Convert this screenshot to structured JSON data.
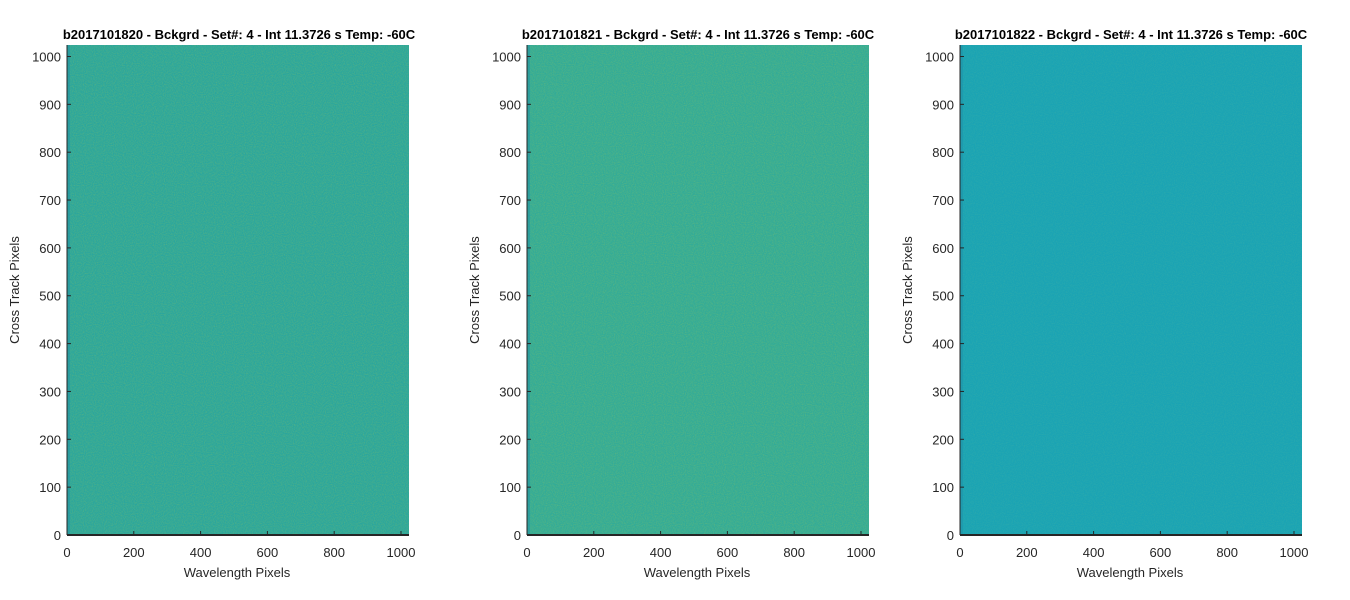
{
  "chart_data": [
    {
      "type": "heatmap",
      "title": "b2017101820 - Bckgrd - Set#: 4 - Int 11.3726 s Temp: -60C",
      "xlabel": "Wavelength Pixels",
      "ylabel": "Cross Track Pixels",
      "xlim": [
        0,
        1024
      ],
      "ylim": [
        0,
        1024
      ],
      "xticks": [
        0,
        200,
        400,
        600,
        800,
        1000
      ],
      "yticks": [
        0,
        100,
        200,
        300,
        400,
        500,
        600,
        700,
        800,
        900,
        1000
      ],
      "colormap": "parula",
      "dominant_color": "#2ba69d",
      "speckle_color": "#7fbf68",
      "description_level": "uniform background noise"
    },
    {
      "type": "heatmap",
      "title": "b2017101821 - Bckgrd - Set#: 4 - Int 11.3726 s Temp: -60C",
      "xlabel": "Wavelength Pixels",
      "ylabel": "Cross Track Pixels",
      "xlim": [
        0,
        1024
      ],
      "ylim": [
        0,
        1024
      ],
      "xticks": [
        0,
        200,
        400,
        600,
        800,
        1000
      ],
      "yticks": [
        0,
        100,
        200,
        300,
        400,
        500,
        600,
        700,
        800,
        900,
        1000
      ],
      "colormap": "parula",
      "dominant_color": "#32ab98",
      "speckle_color": "#86c265",
      "description_level": "uniform background noise"
    },
    {
      "type": "heatmap",
      "title": "b2017101822 - Bckgrd - Set#: 4 - Int 11.3726 s Temp: -60C",
      "xlabel": "Wavelength Pixels",
      "ylabel": "Cross Track Pixels",
      "xlim": [
        0,
        1024
      ],
      "ylim": [
        0,
        1024
      ],
      "xticks": [
        0,
        200,
        400,
        600,
        800,
        1000
      ],
      "yticks": [
        0,
        100,
        200,
        300,
        400,
        500,
        600,
        700,
        800,
        900,
        1000
      ],
      "colormap": "parula",
      "dominant_color": "#1aa3b4",
      "speckle_color": "#3fb3a4",
      "description_level": "uniform background noise"
    }
  ]
}
